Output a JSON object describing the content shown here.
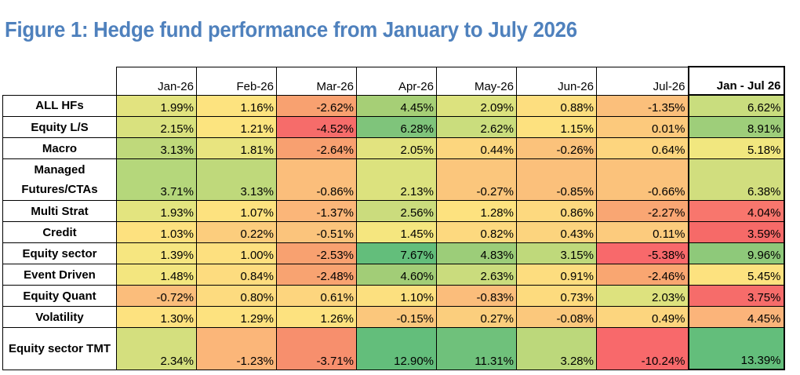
{
  "title": "Figure 1: Hedge fund performance from January to July 2026",
  "table": {
    "headers": [
      "Jan-26",
      "Feb-26",
      "Mar-26",
      "Apr-26",
      "May-26",
      "Jun-26",
      "Jul-26",
      "Jan - Jul 26"
    ],
    "rows": [
      {
        "label": "ALL HFs",
        "values": [
          "1.99%",
          "1.16%",
          "-2.62%",
          "4.45%",
          "2.09%",
          "0.88%",
          "-1.35%",
          "6.62%"
        ],
        "colors": [
          "#e2e37f",
          "#fde37f",
          "#f8a170",
          "#a6cf76",
          "#dce27e",
          "#fdde7f",
          "#fbbf7b",
          "#c9dd7e"
        ]
      },
      {
        "label": "Equity L/S",
        "values": [
          "2.15%",
          "1.21%",
          "-4.52%",
          "6.28%",
          "2.62%",
          "1.15%",
          "0.01%",
          "8.91%"
        ],
        "colors": [
          "#d9e17e",
          "#fce47f",
          "#f66c6a",
          "#7fc47b",
          "#cadd7d",
          "#fde17f",
          "#fcc97c",
          "#9ece7a"
        ]
      },
      {
        "label": "Macro",
        "values": [
          "3.13%",
          "1.81%",
          "-2.64%",
          "2.05%",
          "0.44%",
          "-0.26%",
          "0.64%",
          "5.18%"
        ],
        "colors": [
          "#bfd97b",
          "#e8e47f",
          "#f8a070",
          "#e2e37f",
          "#fcd67e",
          "#fbc27b",
          "#fdd57e",
          "#f1e77f"
        ]
      },
      {
        "label": "Managed Futures/CTAs",
        "double": true,
        "values": [
          "3.71%",
          "3.13%",
          "-0.86%",
          "2.13%",
          "-0.27%",
          "-0.85%",
          "-0.66%",
          "6.38%"
        ],
        "colors": [
          "#b5d77b",
          "#bfd97b",
          "#fbbe7b",
          "#dce27e",
          "#fbc67c",
          "#fbc07b",
          "#fbc27b",
          "#d1de7e"
        ]
      },
      {
        "label": "Multi Strat",
        "values": [
          "1.93%",
          "1.07%",
          "-1.37%",
          "2.56%",
          "1.28%",
          "0.86%",
          "-2.27%",
          "4.04%"
        ],
        "colors": [
          "#e3e47f",
          "#fde27f",
          "#fbb679",
          "#cbdc7d",
          "#fde27f",
          "#fdd97f",
          "#f9a673",
          "#f8766d"
        ]
      },
      {
        "label": "Credit",
        "values": [
          "1.03%",
          "0.22%",
          "-0.51%",
          "1.45%",
          "0.82%",
          "0.43%",
          "0.11%",
          "3.59%"
        ],
        "colors": [
          "#fde17f",
          "#fccd7d",
          "#fbc47c",
          "#f5e67f",
          "#fdd97f",
          "#fcd47e",
          "#fccb7d",
          "#f66a68"
        ]
      },
      {
        "label": "Equity sector",
        "values": [
          "1.39%",
          "1.00%",
          "-2.53%",
          "7.67%",
          "4.83%",
          "3.15%",
          "-5.38%",
          "9.96%"
        ],
        "colors": [
          "#f6e680",
          "#fde07f",
          "#f8a170",
          "#63be7b",
          "#9ccd79",
          "#bfd97b",
          "#f8696b",
          "#8ec97a"
        ]
      },
      {
        "label": "Event Driven",
        "values": [
          "1.48%",
          "0.84%",
          "-2.48%",
          "4.60%",
          "2.63%",
          "0.91%",
          "-2.46%",
          "5.45%"
        ],
        "colors": [
          "#f3e67f",
          "#fddc7f",
          "#f8a371",
          "#a2cd77",
          "#cadc7d",
          "#fddd7f",
          "#f9a671",
          "#fde27f"
        ]
      },
      {
        "label": "Equity Quant",
        "values": [
          "-0.72%",
          "0.80%",
          "0.61%",
          "1.10%",
          "-0.83%",
          "0.73%",
          "2.03%",
          "3.75%"
        ],
        "colors": [
          "#fbbd7b",
          "#fddb7f",
          "#fdd57e",
          "#fce07f",
          "#fbbd7b",
          "#fddb7e",
          "#dde27e",
          "#f66c6a"
        ]
      },
      {
        "label": "Volatility",
        "values": [
          "1.30%",
          "1.29%",
          "1.26%",
          "-0.15%",
          "0.27%",
          "-0.08%",
          "0.49%",
          "4.45%"
        ],
        "colors": [
          "#fde27f",
          "#fde27f",
          "#fde27f",
          "#fbc77c",
          "#fbce7d",
          "#fbc87c",
          "#fcd57e",
          "#fbb47a"
        ]
      },
      {
        "label": "Equity sector TMT",
        "double": true,
        "values": [
          "2.34%",
          "-1.23%",
          "-3.71%",
          "12.90%",
          "11.31%",
          "3.28%",
          "-10.24%",
          "13.39%"
        ],
        "colors": [
          "#d4df7e",
          "#fbb679",
          "#f78f6d",
          "#63be7b",
          "#6fc17b",
          "#bcd87b",
          "#f8696b",
          "#63be7b"
        ]
      }
    ]
  }
}
